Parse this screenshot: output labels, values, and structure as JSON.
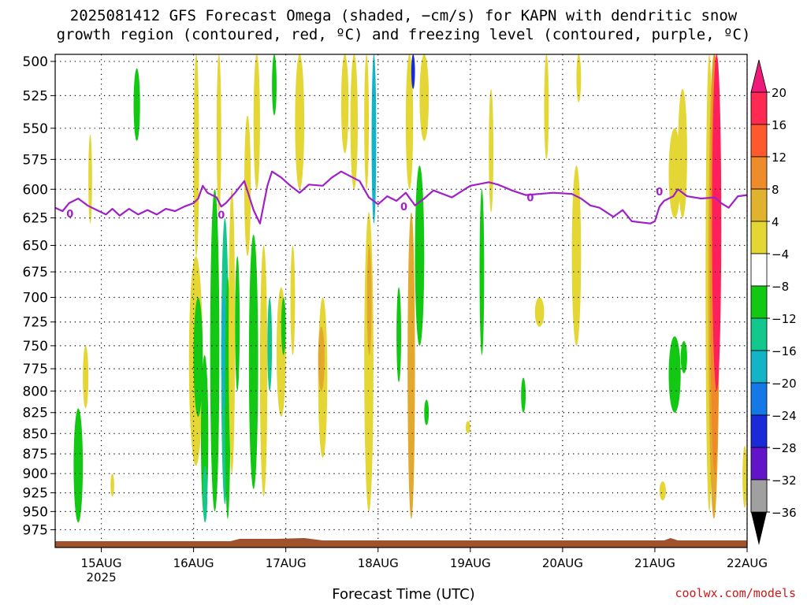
{
  "title_line1": "2025081412 GFS Forecast Omega (shaded, −cm/s) for KAPN with dendritic snow",
  "title_line2": "growth region (contoured, red, ºC) and freezing level (contoured, purple, ºC)",
  "credit": "coolwx.com/models",
  "chart_data": {
    "type": "heatmap",
    "xlabel": "Forecast Time (UTC)",
    "year_label": "2025",
    "x_ticks": [
      "15AUG",
      "16AUG",
      "17AUG",
      "18AUG",
      "19AUG",
      "20AUG",
      "21AUG",
      "22AUG"
    ],
    "x_range_days": [
      14.5,
      22.0
    ],
    "y_ticks": [
      500,
      525,
      550,
      575,
      600,
      625,
      650,
      675,
      700,
      725,
      750,
      775,
      800,
      825,
      850,
      875,
      900,
      925,
      950,
      975
    ],
    "y_range_hPa": [
      495,
      1000
    ],
    "y_scale": "log-pressure",
    "grid": true,
    "colorbar": {
      "labels": [
        "20",
        "16",
        "12",
        "8",
        "4",
        "−4",
        "−8",
        "−12",
        "−16",
        "−20",
        "−24",
        "−28",
        "−32",
        "−36"
      ],
      "colors": [
        "#ff1f5a",
        "#ff5030",
        "#f08a28",
        "#e3a82e",
        "#e4d634",
        "#ffffff",
        "#13c813",
        "#14c88c",
        "#14b4c8",
        "#1478e6",
        "#1a2ad8",
        "#6414c8",
        "#a014c8",
        "#a0a0a0"
      ],
      "top_arrow_color": "#ee1a7a",
      "bottom_arrow_color": "#000000"
    },
    "freezing_level": {
      "label": "0",
      "color": "#a020c8",
      "points": [
        [
          14.5,
          616
        ],
        [
          14.58,
          619
        ],
        [
          14.65,
          612
        ],
        [
          14.75,
          608
        ],
        [
          14.85,
          614
        ],
        [
          14.95,
          618
        ],
        [
          15.05,
          622
        ],
        [
          15.12,
          617
        ],
        [
          15.2,
          623
        ],
        [
          15.3,
          617
        ],
        [
          15.4,
          622
        ],
        [
          15.5,
          618
        ],
        [
          15.6,
          622
        ],
        [
          15.7,
          617
        ],
        [
          15.8,
          619
        ],
        [
          15.9,
          615
        ],
        [
          16.0,
          612
        ],
        [
          16.05,
          608
        ],
        [
          16.1,
          597
        ],
        [
          16.15,
          603
        ],
        [
          16.25,
          607
        ],
        [
          16.3,
          615
        ],
        [
          16.35,
          612
        ],
        [
          16.45,
          603
        ],
        [
          16.55,
          593
        ],
        [
          16.65,
          618
        ],
        [
          16.72,
          630
        ],
        [
          16.8,
          597
        ],
        [
          16.85,
          585
        ],
        [
          16.95,
          590
        ],
        [
          17.05,
          597
        ],
        [
          17.15,
          603
        ],
        [
          17.25,
          596
        ],
        [
          17.4,
          597
        ],
        [
          17.5,
          590
        ],
        [
          17.6,
          585
        ],
        [
          17.7,
          589
        ],
        [
          17.8,
          593
        ],
        [
          17.9,
          607
        ],
        [
          18.0,
          613
        ],
        [
          18.1,
          606
        ],
        [
          18.2,
          610
        ],
        [
          18.3,
          603
        ],
        [
          18.4,
          614
        ],
        [
          18.5,
          608
        ],
        [
          18.6,
          601
        ],
        [
          18.8,
          607
        ],
        [
          19.0,
          597
        ],
        [
          19.2,
          594
        ],
        [
          19.3,
          596
        ],
        [
          19.45,
          601
        ],
        [
          19.6,
          605
        ],
        [
          19.9,
          603
        ],
        [
          20.1,
          604
        ],
        [
          20.2,
          608
        ],
        [
          20.3,
          614
        ],
        [
          20.4,
          616
        ],
        [
          20.55,
          624
        ],
        [
          20.65,
          618
        ],
        [
          20.75,
          628
        ],
        [
          20.85,
          629
        ],
        [
          20.95,
          630
        ],
        [
          21.0,
          628
        ],
        [
          21.05,
          615
        ],
        [
          21.1,
          610
        ],
        [
          21.2,
          606
        ],
        [
          21.25,
          600
        ],
        [
          21.35,
          606
        ],
        [
          21.5,
          608
        ],
        [
          21.65,
          607
        ],
        [
          21.72,
          612
        ],
        [
          21.8,
          616
        ],
        [
          21.9,
          606
        ],
        [
          22.0,
          605
        ]
      ]
    },
    "omega_regions": [
      {
        "x": [
          15.35,
          15.42
        ],
        "p": [
          505,
          560
        ],
        "v": -6
      },
      {
        "x": [
          14.7,
          14.8
        ],
        "p": [
          820,
          965
        ],
        "v": -6
      },
      {
        "x": [
          14.8,
          14.86
        ],
        "p": [
          750,
          820
        ],
        "v": 5
      },
      {
        "x": [
          14.86,
          14.9
        ],
        "p": [
          555,
          630
        ],
        "v": 5
      },
      {
        "x": [
          15.1,
          15.14
        ],
        "p": [
          900,
          930
        ],
        "v": 5
      },
      {
        "x": [
          16.0,
          16.06
        ],
        "p": [
          495,
          660
        ],
        "v": 5
      },
      {
        "x": [
          15.95,
          16.1
        ],
        "p": [
          660,
          890
        ],
        "v": 5
      },
      {
        "x": [
          16.0,
          16.1
        ],
        "p": [
          700,
          830
        ],
        "v": -6
      },
      {
        "x": [
          16.08,
          16.16
        ],
        "p": [
          760,
          960
        ],
        "v": -6
      },
      {
        "x": [
          16.1,
          16.15
        ],
        "p": [
          890,
          965
        ],
        "v": -10
      },
      {
        "x": [
          16.18,
          16.28
        ],
        "p": [
          600,
          950
        ],
        "v": -6
      },
      {
        "x": [
          16.25,
          16.3
        ],
        "p": [
          495,
          620
        ],
        "v": 6
      },
      {
        "x": [
          16.3,
          16.38
        ],
        "p": [
          625,
          940
        ],
        "v": -10
      },
      {
        "x": [
          16.3,
          16.36
        ],
        "p": [
          700,
          820
        ],
        "v": -14
      },
      {
        "x": [
          16.34,
          16.4
        ],
        "p": [
          680,
          960
        ],
        "v": -6
      },
      {
        "x": [
          16.38,
          16.45
        ],
        "p": [
          600,
          900
        ],
        "v": 6
      },
      {
        "x": [
          16.45,
          16.5
        ],
        "p": [
          660,
          800
        ],
        "v": -6
      },
      {
        "x": [
          16.55,
          16.62
        ],
        "p": [
          540,
          660
        ],
        "v": 6
      },
      {
        "x": [
          16.6,
          16.7
        ],
        "p": [
          640,
          920
        ],
        "v": -6
      },
      {
        "x": [
          16.65,
          16.72
        ],
        "p": [
          495,
          600
        ],
        "v": 6
      },
      {
        "x": [
          16.72,
          16.8
        ],
        "p": [
          650,
          930
        ],
        "v": 6
      },
      {
        "x": [
          16.8,
          16.85
        ],
        "p": [
          700,
          800
        ],
        "v": -10
      },
      {
        "x": [
          16.85,
          16.9
        ],
        "p": [
          495,
          540
        ],
        "v": -6
      },
      {
        "x": [
          16.9,
          17.0
        ],
        "p": [
          690,
          830
        ],
        "v": 6
      },
      {
        "x": [
          16.95,
          17.0
        ],
        "p": [
          700,
          760
        ],
        "v": -6
      },
      {
        "x": [
          17.05,
          17.1
        ],
        "p": [
          650,
          760
        ],
        "v": 5
      },
      {
        "x": [
          17.1,
          17.2
        ],
        "p": [
          495,
          600
        ],
        "v": 5
      },
      {
        "x": [
          17.35,
          17.45
        ],
        "p": [
          700,
          880
        ],
        "v": 6
      },
      {
        "x": [
          17.35,
          17.42
        ],
        "p": [
          730,
          800
        ],
        "v": 11
      },
      {
        "x": [
          17.6,
          17.68
        ],
        "p": [
          495,
          570
        ],
        "v": 5
      },
      {
        "x": [
          17.7,
          17.78
        ],
        "p": [
          495,
          600
        ],
        "v": 5
      },
      {
        "x": [
          17.85,
          17.9
        ],
        "p": [
          495,
          600
        ],
        "v": 5
      },
      {
        "x": [
          17.85,
          17.95
        ],
        "p": [
          620,
          950
        ],
        "v": 6
      },
      {
        "x": [
          17.88,
          17.93
        ],
        "p": [
          650,
          760
        ],
        "v": 11
      },
      {
        "x": [
          17.93,
          17.98
        ],
        "p": [
          495,
          630
        ],
        "v": -14
      },
      {
        "x": [
          18.2,
          18.25
        ],
        "p": [
          690,
          790
        ],
        "v": -6
      },
      {
        "x": [
          18.3,
          18.38
        ],
        "p": [
          495,
          600
        ],
        "v": 5
      },
      {
        "x": [
          18.32,
          18.4
        ],
        "p": [
          620,
          960
        ],
        "v": 10
      },
      {
        "x": [
          18.36,
          18.4
        ],
        "p": [
          495,
          520
        ],
        "v": -20
      },
      {
        "x": [
          18.4,
          18.5
        ],
        "p": [
          580,
          750
        ],
        "v": -6
      },
      {
        "x": [
          18.45,
          18.55
        ],
        "p": [
          495,
          560
        ],
        "v": 5
      },
      {
        "x": [
          18.5,
          18.55
        ],
        "p": [
          810,
          840
        ],
        "v": -6
      },
      {
        "x": [
          18.95,
          19.0
        ],
        "p": [
          835,
          850
        ],
        "v": 5
      },
      {
        "x": [
          19.1,
          19.15
        ],
        "p": [
          600,
          760
        ],
        "v": -6
      },
      {
        "x": [
          19.2,
          19.25
        ],
        "p": [
          520,
          620
        ],
        "v": 5
      },
      {
        "x": [
          19.55,
          19.6
        ],
        "p": [
          785,
          825
        ],
        "v": -6
      },
      {
        "x": [
          19.7,
          19.8
        ],
        "p": [
          700,
          730
        ],
        "v": 5
      },
      {
        "x": [
          19.8,
          19.85
        ],
        "p": [
          495,
          575
        ],
        "v": 5
      },
      {
        "x": [
          20.1,
          20.2
        ],
        "p": [
          580,
          750
        ],
        "v": 5
      },
      {
        "x": [
          20.15,
          20.2
        ],
        "p": [
          495,
          530
        ],
        "v": 5
      },
      {
        "x": [
          21.05,
          21.12
        ],
        "p": [
          910,
          935
        ],
        "v": 5
      },
      {
        "x": [
          21.15,
          21.28
        ],
        "p": [
          740,
          825
        ],
        "v": -6
      },
      {
        "x": [
          21.28,
          21.35
        ],
        "p": [
          745,
          780
        ],
        "v": -6
      },
      {
        "x": [
          21.15,
          21.28
        ],
        "p": [
          550,
          625
        ],
        "v": 5
      },
      {
        "x": [
          21.25,
          21.35
        ],
        "p": [
          520,
          625
        ],
        "v": 5
      },
      {
        "x": [
          21.55,
          21.63
        ],
        "p": [
          495,
          950
        ],
        "v": 5
      },
      {
        "x": [
          21.58,
          21.7
        ],
        "p": [
          495,
          960
        ],
        "v": 10
      },
      {
        "x": [
          21.6,
          21.7
        ],
        "p": [
          495,
          900
        ],
        "v": 13
      },
      {
        "x": [
          21.62,
          21.72
        ],
        "p": [
          495,
          800
        ],
        "v": 20
      },
      {
        "x": [
          21.95,
          22.0
        ],
        "p": [
          865,
          945
        ],
        "v": 5
      }
    ]
  }
}
